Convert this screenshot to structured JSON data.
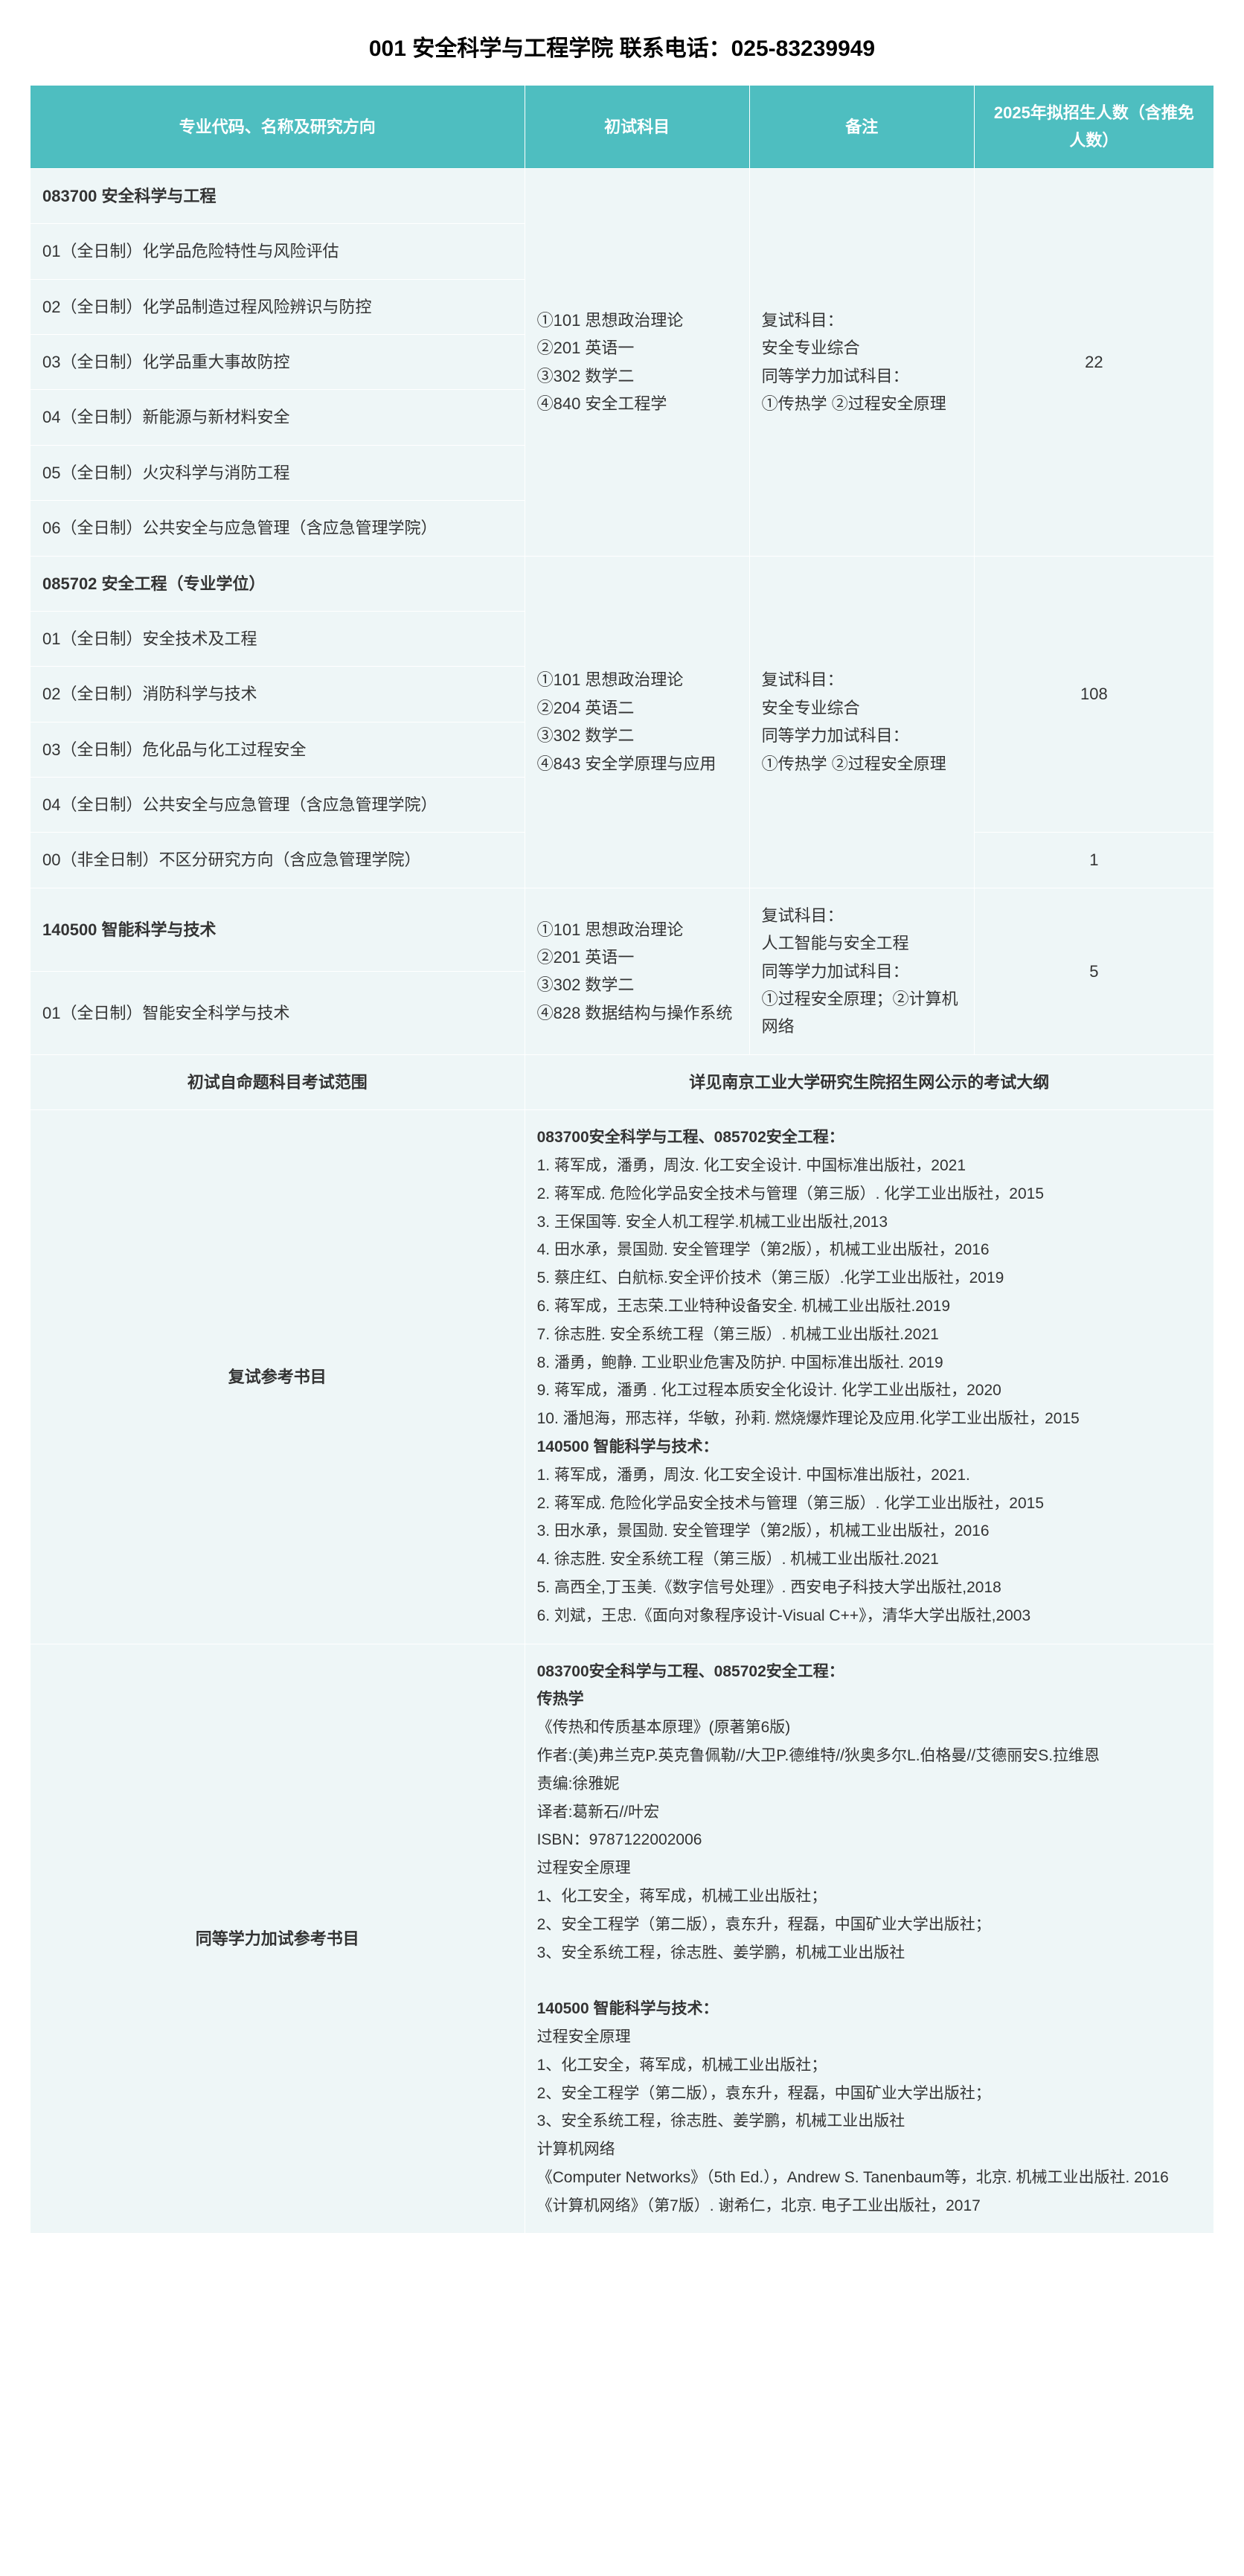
{
  "title": "001 安全科学与工程学院 联系电话：025-83239949",
  "headers": {
    "c1": "专业代码、名称及研究方向",
    "c2": "初试科目",
    "c3": "备注",
    "c4": "2025年拟招生人数（含推免人数）"
  },
  "group1": {
    "major": "083700 安全科学与工程",
    "rows": [
      "01（全日制）化学品危险特性与风险评估",
      "02（全日制）化学品制造过程风险辨识与防控",
      "03（全日制）化学品重大事故防控",
      "04（全日制）新能源与新材料安全",
      "05（全日制）火灾科学与消防工程",
      "06（全日制）公共安全与应急管理（含应急管理学院）"
    ],
    "exam": "①101 思想政治理论\n②201 英语一\n③302 数学二\n④840 安全工程学",
    "note": "复试科目：\n安全专业综合\n同等学力加试科目：\n①传热学 ②过程安全原理",
    "quota": "22"
  },
  "group2": {
    "major": "085702 安全工程（专业学位）",
    "rows": [
      "01（全日制）安全技术及工程",
      "02（全日制）消防科学与技术",
      "03（全日制）危化品与化工过程安全",
      "04（全日制）公共安全与应急管理（含应急管理学院）"
    ],
    "exam": "①101 思想政治理论\n②204 英语二\n③302 数学二\n④843 安全学原理与应用",
    "note": "复试科目：\n安全专业综合\n同等学力加试科目：\n①传热学 ②过程安全原理",
    "quota": "108",
    "extra_row": "00（非全日制）不区分研究方向（含应急管理学院）",
    "extra_quota": "1"
  },
  "group3": {
    "major": "140500 智能科学与技术",
    "rows": [
      "01（全日制）智能安全科学与技术"
    ],
    "exam": "①101 思想政治理论\n②201 英语一\n③302 数学二\n④828 数据结构与操作系统",
    "note": "复试科目：\n人工智能与安全工程\n同等学力加试科目：\n①过程安全原理；②计算机网络",
    "quota": "5"
  },
  "exam_range": {
    "label": "初试自命题科目考试范围",
    "value": "详见南京工业大学研究生院招生网公示的考试大纲"
  },
  "ref_books": {
    "label": "复试参考书目",
    "h1": "083700安全科学与工程、085702安全工程：",
    "list1": [
      "1. 蒋军成，潘勇，周汝. 化工安全设计. 中国标准出版社，2021",
      "2. 蒋军成. 危险化学品安全技术与管理（第三版）. 化学工业出版社，2015",
      "3. 王保国等. 安全人机工程学.机械工业出版社,2013",
      "4. 田水承，景国勋. 安全管理学（第2版），机械工业出版社，2016",
      "5. 蔡庄红、白航标.安全评价技术（第三版）.化学工业出版社，2019",
      "6. 蒋军成，王志荣.工业特种设备安全. 机械工业出版社.2019",
      "7. 徐志胜. 安全系统工程（第三版）. 机械工业出版社.2021",
      "8. 潘勇，鲍静. 工业职业危害及防护. 中国标准出版社. 2019",
      "9. 蒋军成，潘勇 . 化工过程本质安全化设计. 化学工业出版社，2020",
      "10. 潘旭海，邢志祥，华敏，孙莉. 燃烧爆炸理论及应用.化学工业出版社，2015"
    ],
    "h2": "140500 智能科学与技术：",
    "list2": [
      "1. 蒋军成，潘勇，周汝. 化工安全设计. 中国标准出版社，2021.",
      "2. 蒋军成. 危险化学品安全技术与管理（第三版）. 化学工业出版社，2015",
      "3. 田水承，景国勋. 安全管理学（第2版），机械工业出版社，2016",
      "4. 徐志胜. 安全系统工程（第三版）. 机械工业出版社.2021",
      "5. 高西全,丁玉美.《数字信号处理》. 西安电子科技大学出版社,2018",
      "6. 刘斌，王忠.《面向对象程序设计-Visual C++》，清华大学出版社,2003"
    ]
  },
  "add_books": {
    "label": "同等学力加试参考书目",
    "h1": "083700安全科学与工程、085702安全工程：",
    "sub1": "传热学",
    "list1": [
      "《传热和传质基本原理》(原著第6版)",
      "作者:(美)弗兰克P.英克鲁佩勒//大卫P.德维特//狄奥多尔L.伯格曼//艾德丽安S.拉维恩",
      "责编:徐雅妮",
      "译者:葛新石//叶宏",
      "ISBN：9787122002006"
    ],
    "sub2": "过程安全原理",
    "list2": [
      "1、化工安全，蒋军成，机械工业出版社；",
      "2、安全工程学（第二版），袁东升，程磊，中国矿业大学出版社；",
      "3、安全系统工程，徐志胜、姜学鹏，机械工业出版社"
    ],
    "h2": "140500 智能科学与技术：",
    "sub3": "过程安全原理",
    "list3": [
      "1、化工安全，蒋军成，机械工业出版社；",
      "2、安全工程学（第二版），袁东升，程磊，中国矿业大学出版社；",
      "3、安全系统工程，徐志胜、姜学鹏，机械工业出版社"
    ],
    "sub4": "计算机网络",
    "list4": [
      "《Computer Networks》（5th Ed.），Andrew S. Tanenbaum等，北京. 机械工业出版社. 2016",
      "《计算机网络》（第7版）. 谢希仁，北京. 电子工业出版社，2017"
    ]
  }
}
